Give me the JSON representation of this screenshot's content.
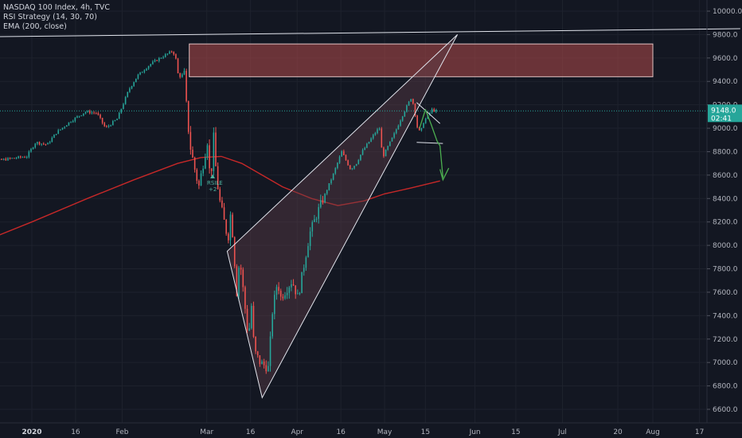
{
  "legend": {
    "title": "NASDAQ 100 Index, 4h, TVC",
    "indicator_1": "RSI Strategy (14, 30, 70)",
    "indicator_2": "EMA (200, close)"
  },
  "colors": {
    "background": "#131722",
    "up": "#26a69a",
    "down": "#ef5350",
    "ema": "#c62828",
    "zone_fill": "#b24b4b",
    "wedge_fill": "#5a3c46",
    "drawing": "#e0e3eb",
    "projection": "#4caf50",
    "price_tag": "#26a69a"
  },
  "price_tag": {
    "value": "9148.0",
    "countdown": "02:41"
  },
  "signal": {
    "label": "RSILE",
    "sublabel": "+2"
  },
  "chart_data": {
    "type": "candlestick",
    "title": "NASDAQ 100 Index, 4h, TVC",
    "y_ticks": [
      6600,
      6800,
      7000,
      7200,
      7400,
      7600,
      7800,
      8000,
      8200,
      8400,
      8600,
      8800,
      9000,
      9200,
      9400,
      9600,
      9800,
      10000
    ],
    "y_tick_labels": [
      "6600.0",
      "6800.0",
      "7000.0",
      "7200.0",
      "7400.0",
      "7600.0",
      "7800.0",
      "8000.0",
      "8200.0",
      "8400.0",
      "8600.0",
      "8800.0",
      "9000.0",
      "9200.0",
      "9400.0",
      "9600.0",
      "9800.0",
      "10000.0"
    ],
    "ylim": [
      6530,
      10080
    ],
    "x_ticks": [
      {
        "label": "2020",
        "date": "2020-01-01",
        "bold": true
      },
      {
        "label": "16",
        "date": "2020-01-16"
      },
      {
        "label": "Feb",
        "date": "2020-02-01"
      },
      {
        "label": "Mar",
        "date": "2020-03-01"
      },
      {
        "label": "16",
        "date": "2020-03-16"
      },
      {
        "label": "Apr",
        "date": "2020-04-01"
      },
      {
        "label": "16",
        "date": "2020-04-16"
      },
      {
        "label": "May",
        "date": "2020-05-01"
      },
      {
        "label": "15",
        "date": "2020-05-15"
      },
      {
        "label": "Jun",
        "date": "2020-06-01"
      },
      {
        "label": "15",
        "date": "2020-06-15"
      },
      {
        "label": "Jul",
        "date": "2020-07-01"
      },
      {
        "label": "20",
        "date": "2020-07-20"
      },
      {
        "label": "Aug",
        "date": "2020-08-01"
      },
      {
        "label": "17",
        "date": "2020-08-17"
      }
    ],
    "price_path": [
      [
        "2019-12-13",
        8640
      ],
      [
        "2019-12-20",
        8720
      ],
      [
        "2019-12-25",
        8740
      ],
      [
        "2019-12-31",
        8760
      ],
      [
        "2020-01-03",
        8880
      ],
      [
        "2020-01-07",
        8860
      ],
      [
        "2020-01-10",
        8960
      ],
      [
        "2020-01-15",
        9060
      ],
      [
        "2020-01-20",
        9140
      ],
      [
        "2020-01-24",
        9130
      ],
      [
        "2020-01-27",
        9000
      ],
      [
        "2020-01-31",
        9080
      ],
      [
        "2020-02-04",
        9330
      ],
      [
        "2020-02-07",
        9450
      ],
      [
        "2020-02-11",
        9540
      ],
      [
        "2020-02-14",
        9590
      ],
      [
        "2020-02-19",
        9660
      ],
      [
        "2020-02-20",
        9610
      ],
      [
        "2020-02-21",
        9440
      ],
      [
        "2020-02-23",
        9460
      ],
      [
        "2020-02-24",
        9100
      ],
      [
        "2020-02-25",
        8850
      ],
      [
        "2020-02-27",
        8600
      ],
      [
        "2020-02-28",
        8500
      ],
      [
        "2020-03-02",
        8900
      ],
      [
        "2020-03-03",
        8500
      ],
      [
        "2020-03-04",
        8950
      ],
      [
        "2020-03-05",
        8600
      ],
      [
        "2020-03-06",
        8400
      ],
      [
        "2020-03-09",
        8050
      ],
      [
        "2020-03-10",
        8300
      ],
      [
        "2020-03-12",
        7600
      ],
      [
        "2020-03-13",
        7900
      ],
      [
        "2020-03-16",
        7200
      ],
      [
        "2020-03-17",
        7500
      ],
      [
        "2020-03-18",
        7100
      ],
      [
        "2020-03-20",
        7000
      ],
      [
        "2020-03-23",
        6950
      ],
      [
        "2020-03-24",
        7400
      ],
      [
        "2020-03-26",
        7700
      ],
      [
        "2020-03-27",
        7550
      ],
      [
        "2020-03-31",
        7700
      ],
      [
        "2020-04-02",
        7550
      ],
      [
        "2020-04-06",
        8100
      ],
      [
        "2020-04-09",
        8300
      ],
      [
        "2020-04-14",
        8600
      ],
      [
        "2020-04-17",
        8800
      ],
      [
        "2020-04-20",
        8650
      ],
      [
        "2020-04-22",
        8700
      ],
      [
        "2020-04-24",
        8800
      ],
      [
        "2020-04-29",
        8980
      ],
      [
        "2020-04-30",
        9000
      ],
      [
        "2020-05-01",
        8750
      ],
      [
        "2020-05-05",
        8950
      ],
      [
        "2020-05-08",
        9120
      ],
      [
        "2020-05-11",
        9270
      ],
      [
        "2020-05-12",
        9150
      ],
      [
        "2020-05-13",
        9000
      ],
      [
        "2020-05-14",
        8960
      ],
      [
        "2020-05-15",
        9050
      ],
      [
        "2020-05-18",
        9160
      ],
      [
        "2020-05-19",
        9148
      ]
    ],
    "ema_200": [
      [
        "2019-12-13",
        8010
      ],
      [
        "2020-01-01",
        8200
      ],
      [
        "2020-01-20",
        8400
      ],
      [
        "2020-02-05",
        8560
      ],
      [
        "2020-02-20",
        8700
      ],
      [
        "2020-02-28",
        8750
      ],
      [
        "2020-03-06",
        8760
      ],
      [
        "2020-03-13",
        8700
      ],
      [
        "2020-03-20",
        8600
      ],
      [
        "2020-03-27",
        8500
      ],
      [
        "2020-04-06",
        8400
      ],
      [
        "2020-04-15",
        8340
      ],
      [
        "2020-04-24",
        8380
      ],
      [
        "2020-05-01",
        8440
      ],
      [
        "2020-05-10",
        8490
      ],
      [
        "2020-05-20",
        8550
      ]
    ],
    "last_price": 9148.0
  },
  "drawings": {
    "resistance_zone": {
      "start": "2020-02-24",
      "end": "2020-08-01",
      "top": 9720,
      "bottom": 9440
    },
    "trendline": [
      [
        "2019-12-13",
        9780
      ],
      [
        "2020-08-31",
        9850
      ]
    ],
    "wedge": [
      [
        "2020-03-08",
        7950
      ],
      [
        "2020-03-20",
        6700
      ],
      [
        "2020-05-26",
        9800
      ]
    ],
    "flag_lines": [
      [
        [
          "2020-05-12",
          9220
        ],
        [
          "2020-05-20",
          9040
        ]
      ],
      [
        [
          "2020-05-12",
          8880
        ],
        [
          "2020-05-21",
          8870
        ]
      ]
    ],
    "projection_path": [
      [
        "2020-05-13",
        9000
      ],
      [
        "2020-05-15",
        9160
      ],
      [
        "2020-05-17",
        9030
      ],
      [
        "2020-05-19",
        8890
      ],
      [
        "2020-05-20",
        8850
      ],
      [
        "2020-05-21",
        8580
      ],
      [
        "2020-05-20",
        8650
      ],
      [
        "2020-05-21",
        8560
      ],
      [
        "2020-05-23",
        8660
      ]
    ]
  }
}
